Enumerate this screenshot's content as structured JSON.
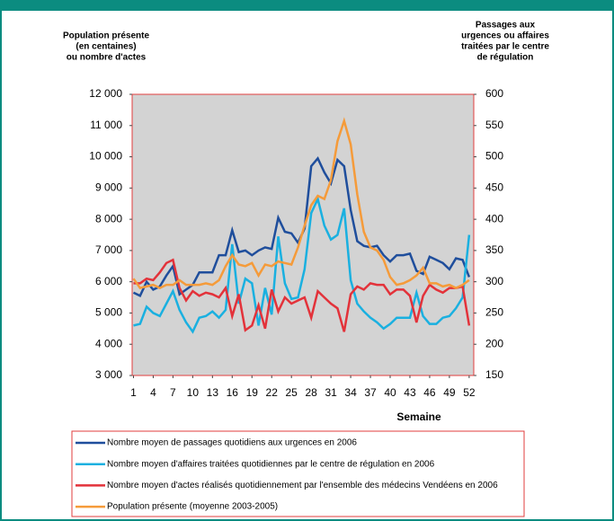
{
  "chart_data": {
    "type": "line",
    "y_axis_label": [
      "Population présente",
      "(en centaines)",
      "ou nombre d'actes"
    ],
    "y2_axis_label": [
      "Passages aux",
      "urgences ou affaires",
      "traitées par le centre",
      "de régulation"
    ],
    "x_axis_label": "Semaine",
    "x": [
      1,
      2,
      3,
      4,
      5,
      6,
      7,
      8,
      9,
      10,
      11,
      12,
      13,
      14,
      15,
      16,
      17,
      18,
      19,
      20,
      21,
      22,
      23,
      24,
      25,
      26,
      27,
      28,
      29,
      30,
      31,
      32,
      33,
      34,
      35,
      36,
      37,
      38,
      39,
      40,
      41,
      42,
      43,
      44,
      45,
      46,
      47,
      48,
      49,
      50,
      51,
      52
    ],
    "xlim": [
      0.8,
      52.7
    ],
    "xticks": [
      1,
      4,
      7,
      10,
      13,
      16,
      19,
      22,
      25,
      28,
      31,
      34,
      37,
      40,
      43,
      46,
      49,
      52
    ],
    "ylim": [
      3000,
      12000
    ],
    "yticks": [
      {
        "value": 3000,
        "label": "3 000"
      },
      {
        "value": 4000,
        "label": "4 000"
      },
      {
        "value": 5000,
        "label": "5 000"
      },
      {
        "value": 6000,
        "label": "6 000"
      },
      {
        "value": 7000,
        "label": "7 000"
      },
      {
        "value": 8000,
        "label": "8 000"
      },
      {
        "value": 9000,
        "label": "9 000"
      },
      {
        "value": 10000,
        "label": "10 000"
      },
      {
        "value": 11000,
        "label": "11 000"
      },
      {
        "value": 12000,
        "label": "12 000"
      }
    ],
    "y2lim": [
      150,
      600
    ],
    "y2ticks": [
      150,
      200,
      250,
      300,
      350,
      400,
      450,
      500,
      550,
      600
    ],
    "plot_background": "#d3d3d3",
    "frame_color": "#e03c3c",
    "series": [
      {
        "name": "Nombre moyen de passages quotidiens aux urgences en 2006",
        "color": "#1f4e9c",
        "axis": "y2",
        "values": [
          282.5,
          277.5,
          300,
          287.5,
          292.5,
          310,
          325,
          280,
          287.5,
          295,
          315,
          315,
          315,
          342.5,
          342.5,
          382.5,
          347.5,
          350,
          342.5,
          350,
          355,
          352.5,
          402.5,
          380,
          377.5,
          362.5,
          385,
          485,
          497.5,
          475,
          457.5,
          495,
          485,
          415,
          365,
          357.5,
          355,
          357.5,
          342.5,
          332.5,
          342.5,
          342.5,
          345,
          317.5,
          312.5,
          340,
          335,
          330,
          320,
          337.5,
          335,
          307.5
        ]
      },
      {
        "name": "Nombre moyen d'affaires traitées quotidiennes par le centre de régulation en 2006",
        "color": "#1ab0e0",
        "axis": "y2",
        "values": [
          230,
          232.5,
          260,
          250,
          245,
          265,
          285,
          255,
          235,
          220,
          242.5,
          245,
          252.5,
          242.5,
          255,
          360,
          265,
          305,
          297.5,
          230,
          290,
          247.5,
          372.5,
          297.5,
          272.5,
          275,
          320,
          410,
          432.5,
          390,
          367.5,
          375,
          417.5,
          302.5,
          265,
          252.5,
          242.5,
          235,
          225,
          232.5,
          242.5,
          242.5,
          242.5,
          282.5,
          245,
          232.5,
          232.5,
          242.5,
          245,
          257.5,
          275,
          375
        ]
      },
      {
        "name": "Nombre moyen d'actes réalisés quotidiennement par l'ensemble des médecins Vendéens en 2006",
        "color": "#e3323a",
        "axis": "y",
        "values": [
          5950,
          5950,
          6100,
          6050,
          6300,
          6600,
          6700,
          5800,
          5400,
          5700,
          5550,
          5650,
          5600,
          5500,
          5800,
          4900,
          5600,
          4450,
          4600,
          5250,
          4500,
          5750,
          5050,
          5500,
          5300,
          5400,
          5500,
          4850,
          5700,
          5500,
          5300,
          5150,
          4400,
          5600,
          5850,
          5750,
          5950,
          5900,
          5900,
          5600,
          5750,
          5750,
          5550,
          4700,
          5550,
          5900,
          5750,
          5650,
          5800,
          5800,
          5850,
          4600
        ]
      },
      {
        "name": "Population présente (moyenne 2003-2005)",
        "color": "#f59b3a",
        "axis": "y",
        "values": [
          6100,
          5800,
          5850,
          5900,
          5800,
          5900,
          5900,
          6050,
          5900,
          5900,
          5900,
          5950,
          5900,
          6050,
          6500,
          6850,
          6550,
          6500,
          6600,
          6200,
          6550,
          6500,
          6650,
          6600,
          6550,
          7100,
          7800,
          8450,
          8750,
          8650,
          9250,
          10500,
          11150,
          10400,
          8800,
          7600,
          7100,
          7000,
          6700,
          6150,
          5900,
          5950,
          6050,
          6200,
          6450,
          5950,
          5950,
          5850,
          5900,
          5800,
          5900,
          6050
        ]
      }
    ]
  }
}
